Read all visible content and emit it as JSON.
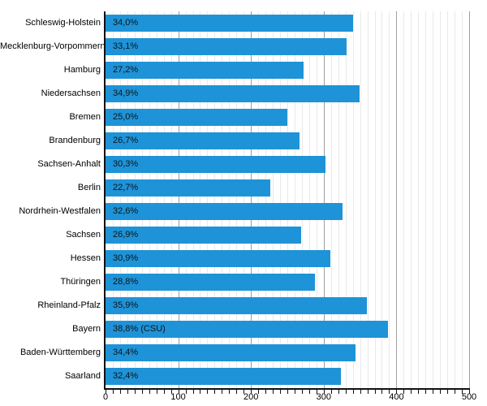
{
  "chart_data": {
    "type": "bar",
    "orientation": "horizontal",
    "title": "",
    "categories": [
      "Schleswig-Holstein",
      "Mecklenburg-Vorpommern",
      "Hamburg",
      "Niedersachsen",
      "Bremen",
      "Brandenburg",
      "Sachsen-Anhalt",
      "Berlin",
      "Nordrhein-Westfalen",
      "Sachsen",
      "Hessen",
      "Thüringen",
      "Rheinland-Pfalz",
      "Bayern",
      "Baden-Württemberg",
      "Saarland"
    ],
    "values_percent": [
      34.0,
      33.1,
      27.2,
      34.9,
      25.0,
      26.7,
      30.3,
      22.7,
      32.6,
      26.9,
      30.9,
      28.8,
      35.9,
      38.8,
      34.4,
      32.4
    ],
    "bar_labels": [
      "34,0%",
      "33,1%",
      "27,2%",
      "34,9%",
      "25,0%",
      "26,7%",
      "30,3%",
      "22,7%",
      "32,6%",
      "26,9%",
      "30,9%",
      "28,8%",
      "35,9%",
      "38,8% (CSU)",
      "34,4%",
      "32,4%"
    ],
    "x_axis": {
      "min": 0,
      "max": 500,
      "major_tick_labels": [
        "0",
        "100",
        "200",
        "300",
        "400",
        "500"
      ],
      "major_tick_values": [
        0,
        100,
        200,
        300,
        400,
        500
      ],
      "minor_tick_step": 10,
      "units_per_percent": 10
    },
    "grid": true,
    "legend": false,
    "colors": {
      "bar": "#1e93d8",
      "minor_gridline": "#e9e9e9",
      "major_gridline": "#9e9e9e",
      "axis": "#111111",
      "bar_label_text": "#101418",
      "axis_label_text": "#000000"
    }
  }
}
